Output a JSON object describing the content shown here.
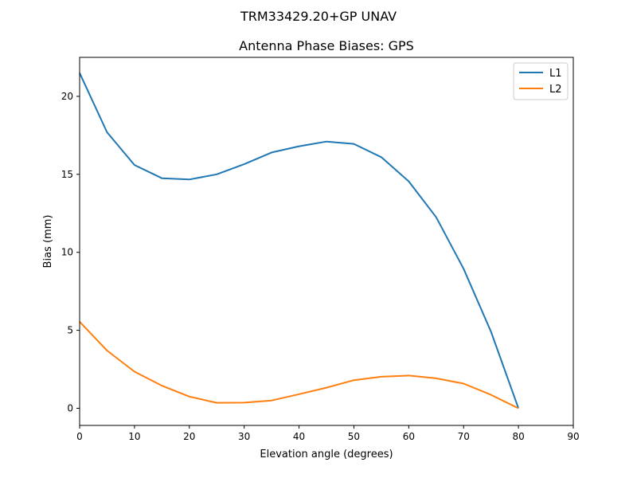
{
  "chart_data": {
    "type": "line",
    "suptitle": "TRM33429.20+GP  UNAV",
    "title": "Antenna Phase Biases: GPS",
    "xlabel": "Elevation angle (degrees)",
    "ylabel": "Bias (mm)",
    "xlim": [
      0,
      90
    ],
    "ylim": [
      -1.1,
      22.5
    ],
    "xticks": [
      0,
      10,
      20,
      30,
      40,
      50,
      60,
      70,
      80,
      90
    ],
    "yticks": [
      0,
      5,
      10,
      15,
      20
    ],
    "grid": false,
    "legend_position": "top-right",
    "x": [
      0,
      5,
      10,
      15,
      20,
      25,
      30,
      35,
      40,
      45,
      50,
      55,
      60,
      65,
      70,
      75,
      80
    ],
    "series": [
      {
        "name": "L1",
        "color": "#1f77b4",
        "values": [
          21.5,
          17.7,
          15.6,
          14.75,
          14.67,
          15.0,
          15.65,
          16.4,
          16.8,
          17.1,
          16.95,
          16.1,
          14.55,
          12.25,
          8.95,
          4.9,
          0.0
        ]
      },
      {
        "name": "L2",
        "color": "#ff7f0e",
        "values": [
          5.55,
          3.7,
          2.35,
          1.45,
          0.75,
          0.35,
          0.36,
          0.5,
          0.9,
          1.32,
          1.8,
          2.02,
          2.1,
          1.92,
          1.58,
          0.86,
          0.0
        ]
      }
    ]
  }
}
